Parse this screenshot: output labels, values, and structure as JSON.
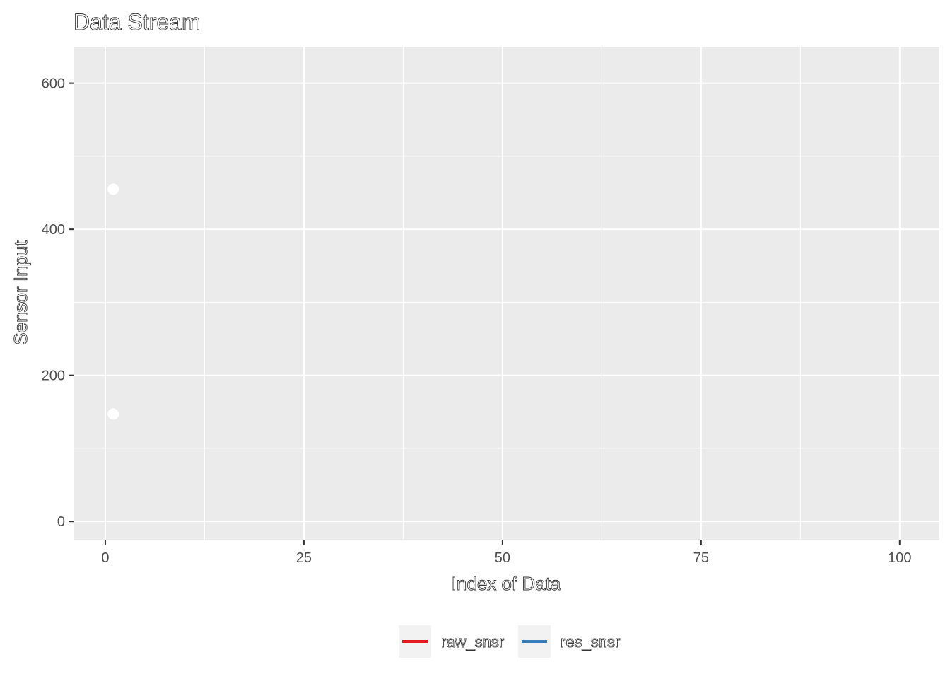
{
  "chart_data": {
    "type": "line",
    "title": "Data Stream",
    "xlabel": "Index of Data",
    "ylabel": "Sensor Input",
    "xlim": [
      -4,
      105
    ],
    "ylim": [
      -25,
      650
    ],
    "x_ticks": [
      0,
      25,
      50,
      75,
      100
    ],
    "y_ticks": [
      0,
      200,
      400,
      600
    ],
    "grid": true,
    "legend_position": "bottom",
    "series": [
      {
        "name": "raw_snsr",
        "color": "#e41a1c",
        "x": [
          1
        ],
        "y": [
          455
        ]
      },
      {
        "name": "res_snsr",
        "color": "#377eb8",
        "x": [
          1
        ],
        "y": [
          147
        ]
      }
    ],
    "point_color": "#ffffff",
    "panel_background": "#ebebeb",
    "grid_color": "#ffffff"
  }
}
